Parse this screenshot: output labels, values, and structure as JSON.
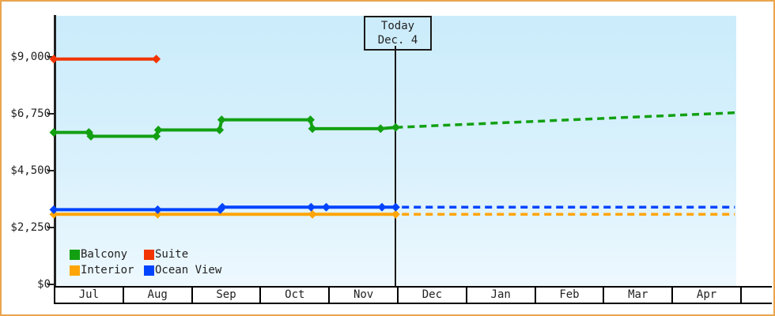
{
  "today_flag": {
    "line1": "Today",
    "line2": "Dec. 4"
  },
  "y_axis": {
    "tick_labels": [
      "$9,000",
      "$6,750",
      "$4,500",
      "$2,250",
      "$0"
    ],
    "tick_values": [
      9000,
      6750,
      4500,
      2250,
      0
    ]
  },
  "x_axis": {
    "months": [
      "Jul",
      "Aug",
      "Sep",
      "Oct",
      "Nov",
      "Dec",
      "Jan",
      "Feb",
      "Mar",
      "Apr"
    ]
  },
  "legend": {
    "items": [
      {
        "label": "Balcony",
        "color": "#12a012"
      },
      {
        "label": "Suite",
        "color": "#f23400"
      },
      {
        "label": "Interior",
        "color": "#ffa508"
      },
      {
        "label": "Ocean View",
        "color": "#0044ff"
      }
    ]
  },
  "colors": {
    "frame_border": "#e9a54e",
    "plot_bg_top": "#cbecfb",
    "plot_bg_bottom": "#edf8fe",
    "axis": "#222222",
    "today_line": "#1a1a1a"
  },
  "chart_data": {
    "type": "line",
    "title": "",
    "x_categories": [
      "Jul",
      "Aug",
      "Sep",
      "Oct",
      "Nov",
      "Dec",
      "Jan",
      "Feb",
      "Mar",
      "Apr"
    ],
    "x_units": "month_offset (0 = Jul 1)",
    "y_units": "USD",
    "y_ticks": [
      0,
      2250,
      4500,
      6750,
      9000
    ],
    "ylim": [
      0,
      9750
    ],
    "grid": false,
    "legend_position": "bottom-left inside plot",
    "today_marker": {
      "label": "Today",
      "date": "Dec. 4",
      "month_offset": 4.97
    },
    "series": [
      {
        "name": "Suite",
        "color": "#f23400",
        "style": "solid",
        "points": [
          [
            0,
            8900
          ],
          [
            1.49,
            8900
          ]
        ],
        "forecast": []
      },
      {
        "name": "Balcony",
        "color": "#12a012",
        "style": "solid",
        "points": [
          [
            0,
            6000
          ],
          [
            0.51,
            6000
          ],
          [
            0.54,
            5850
          ],
          [
            1.49,
            5850
          ],
          [
            1.52,
            6100
          ],
          [
            2.41,
            6100
          ],
          [
            2.44,
            6500
          ],
          [
            3.73,
            6500
          ],
          [
            3.76,
            6150
          ],
          [
            4.75,
            6150
          ],
          [
            4.97,
            6200
          ]
        ],
        "forecast": [
          [
            4.97,
            6200
          ],
          [
            9.9,
            6780
          ]
        ]
      },
      {
        "name": "Interior",
        "color": "#ffa508",
        "style": "solid",
        "points": [
          [
            0,
            2770
          ],
          [
            1.51,
            2770
          ],
          [
            3.76,
            2770
          ],
          [
            4.97,
            2770
          ]
        ],
        "forecast": [
          [
            5.06,
            2770
          ],
          [
            9.9,
            2770
          ]
        ]
      },
      {
        "name": "Ocean View",
        "color": "#0044ff",
        "style": "solid",
        "points": [
          [
            0,
            2950
          ],
          [
            1.51,
            2950
          ],
          [
            2.42,
            2950
          ],
          [
            2.45,
            3050
          ],
          [
            3.74,
            3050
          ],
          [
            3.96,
            3050
          ],
          [
            4.77,
            3050
          ],
          [
            4.97,
            3050
          ]
        ],
        "forecast": [
          [
            5.06,
            3050
          ],
          [
            9.9,
            3050
          ]
        ]
      }
    ]
  }
}
